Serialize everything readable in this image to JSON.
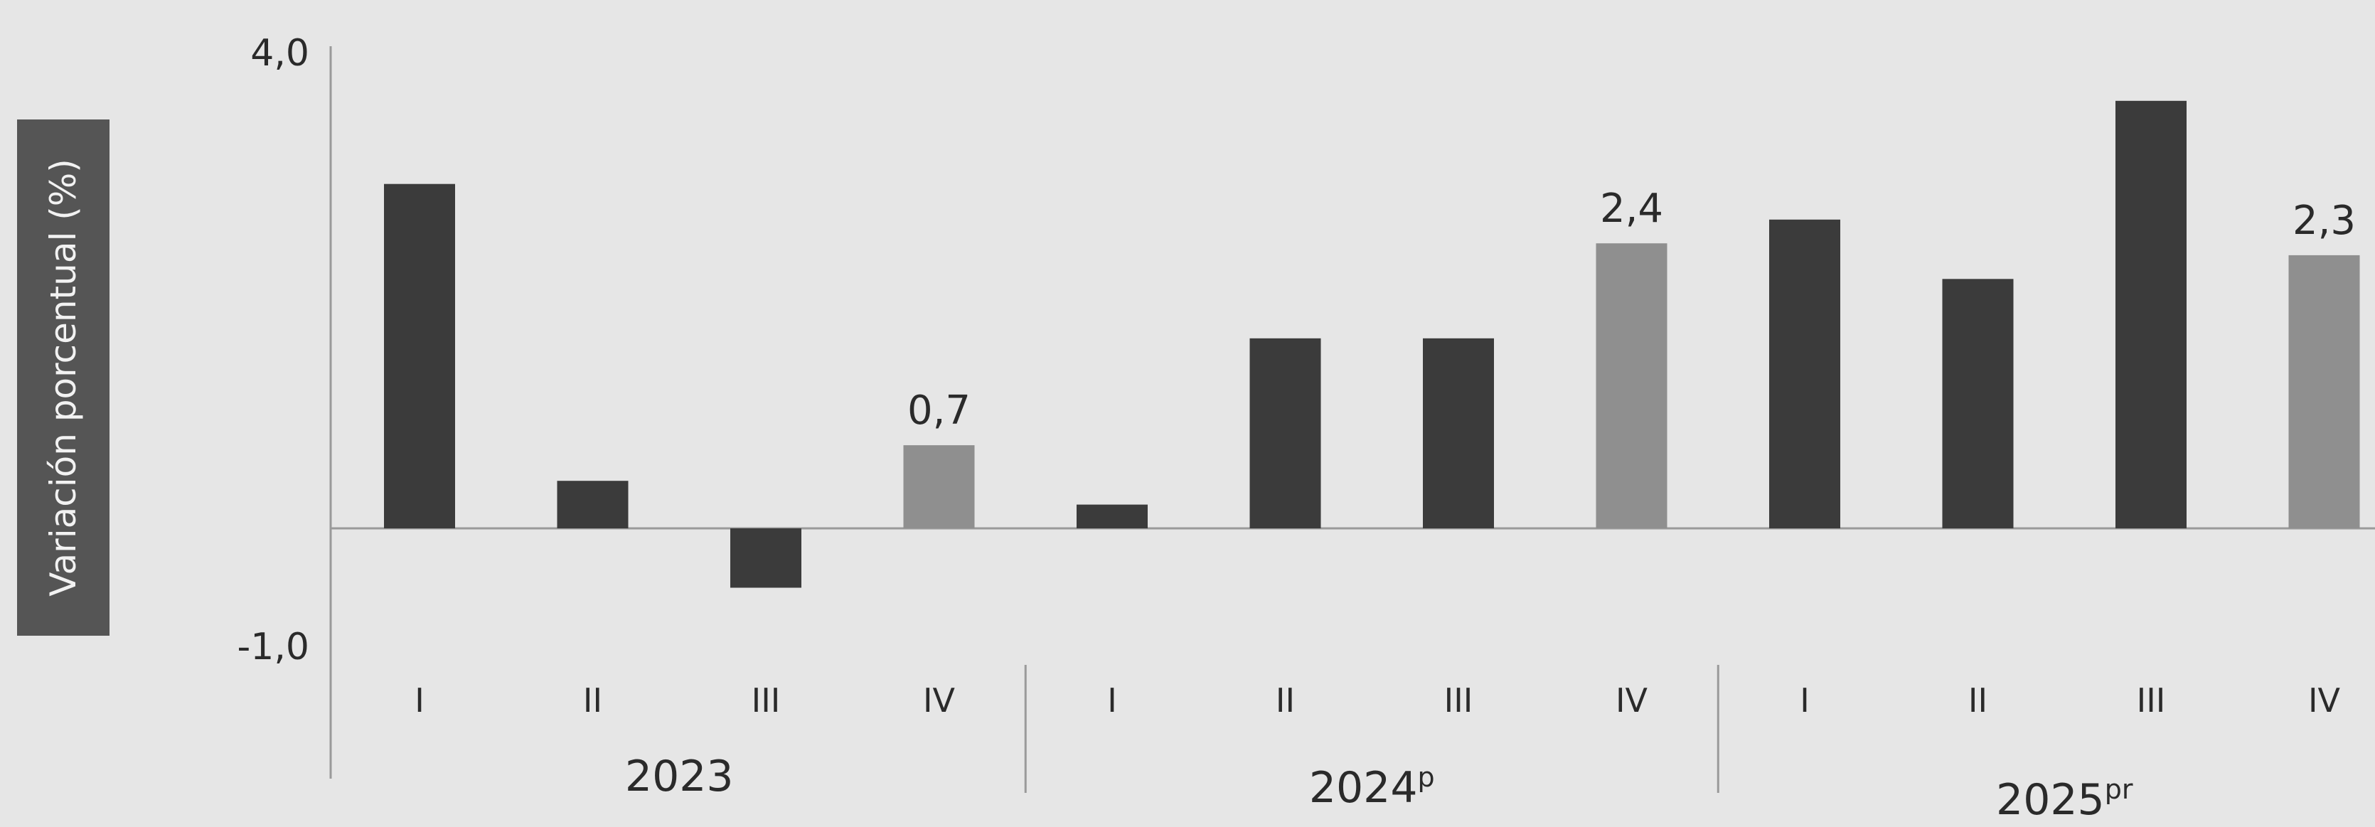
{
  "chart_data": {
    "type": "bar",
    "ylabel": "Variación porcentual (%)",
    "ylim": [
      -1.0,
      4.0
    ],
    "yticks": [
      {
        "value": 4.0,
        "label": "4,0"
      },
      {
        "value": -1.0,
        "label": "-1,0"
      }
    ],
    "grid": false,
    "legend": "none",
    "categories": [
      "I",
      "II",
      "III",
      "IV",
      "I",
      "II",
      "III",
      "IV",
      "I",
      "II",
      "III",
      "IV"
    ],
    "groups": [
      {
        "label": "2023",
        "base": "2023",
        "sup": ""
      },
      {
        "label": "2024p",
        "base": "2024",
        "sup": "p"
      },
      {
        "label": "2025pr",
        "base": "2025",
        "sup": "pr"
      }
    ],
    "values": [
      2.9,
      0.4,
      -0.5,
      0.7,
      0.2,
      1.6,
      1.6,
      2.4,
      2.6,
      2.1,
      3.6,
      2.3
    ],
    "highlight": [
      false,
      false,
      false,
      true,
      false,
      false,
      false,
      true,
      false,
      false,
      false,
      true
    ],
    "data_labels": [
      "",
      "",
      "",
      "0,7",
      "",
      "",
      "",
      "2,4",
      "",
      "",
      "",
      "2,3"
    ],
    "colors": {
      "bar": "#3b3b3b",
      "bar_highlight": "#8f8f8f",
      "ylabel_box": "#555555",
      "axis": "#9a9a9a",
      "text": "#2a2a2a",
      "background": "#e6e6e6"
    }
  }
}
